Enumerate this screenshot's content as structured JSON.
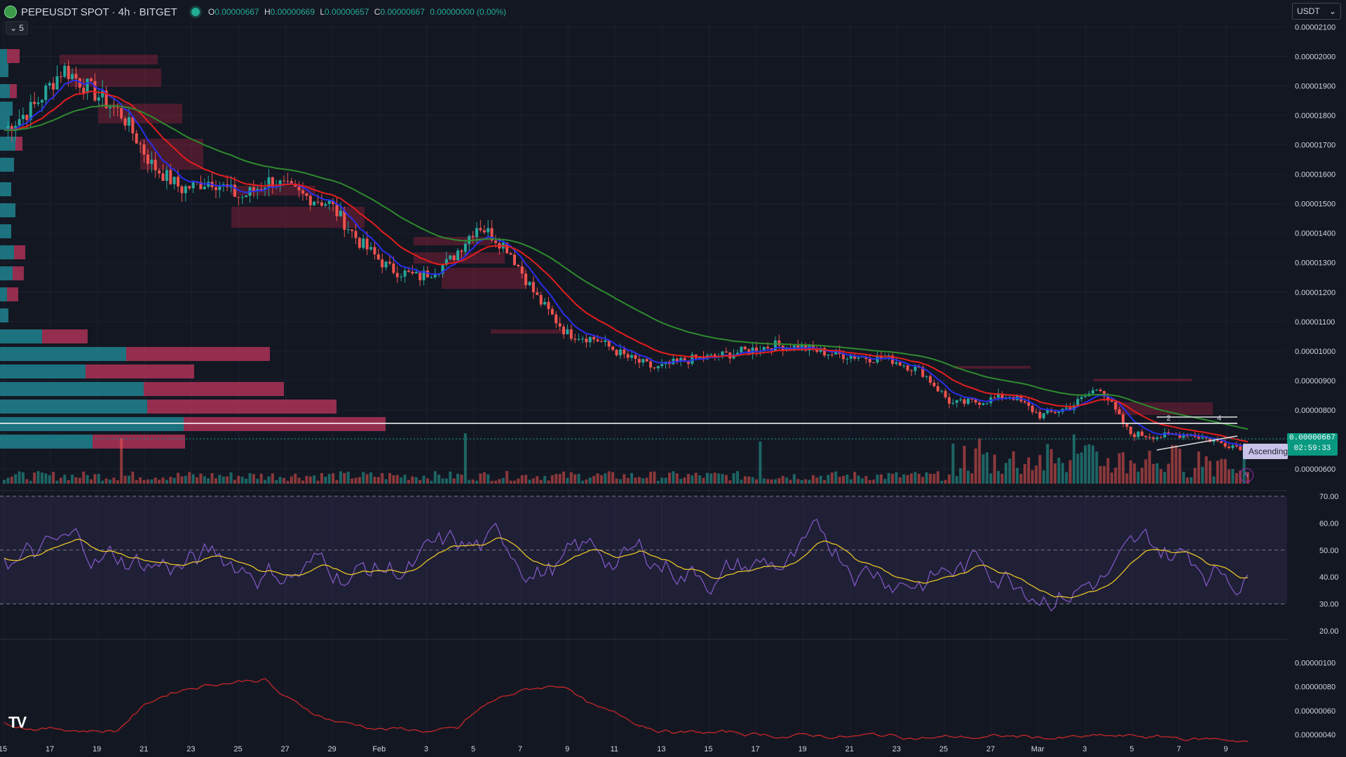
{
  "header": {
    "symbol": "PEPEUSDT SPOT · 4h · BITGET",
    "o_label": "O",
    "o": "0.00000667",
    "h_label": "H",
    "h": "0.00000669",
    "l_label": "L",
    "l": "0.00000657",
    "c_label": "C",
    "c": "0.00000667",
    "change": "0.00000000 (0.00%)"
  },
  "collapse_count": "5",
  "currency_select": "USDT",
  "current_price": "0.00000667",
  "countdown": "02:59:33",
  "pattern_label": "Ascending",
  "price_axis": [
    "0.00002100",
    "0.00002000",
    "0.00001900",
    "0.00001800",
    "0.00001700",
    "0.00001600",
    "0.00001500",
    "0.00001400",
    "0.00001300",
    "0.00001200",
    "0.00001100",
    "0.00001000",
    "0.00000900",
    "0.00000800",
    "0.00000700",
    "0.00000600"
  ],
  "rsi_axis": [
    "70.00",
    "60.00",
    "50.00",
    "40.00",
    "30.00",
    "20.00"
  ],
  "ind_axis": [
    "0.00000100",
    "0.00000080",
    "0.00000060",
    "0.00000040"
  ],
  "date_axis": [
    "15",
    "17",
    "19",
    "21",
    "23",
    "25",
    "27",
    "29",
    "Feb",
    "3",
    "5",
    "7",
    "9",
    "11",
    "13",
    "15",
    "17",
    "19",
    "21",
    "23",
    "25",
    "27",
    "Mar",
    "3",
    "5",
    "7",
    "9"
  ],
  "pattern_points": [
    "2",
    "4"
  ],
  "colors": {
    "bg": "#131722",
    "up": "#26a69a",
    "down": "#ef5350",
    "ema_fast": "#2a2eec",
    "ema_mid": "#e41e1e",
    "ema_slow": "#2e8b2e",
    "rsi": "#7e57c2",
    "rsi_ma": "#e6c229",
    "accent": "#089981"
  },
  "chart_data": {
    "type": "line",
    "x_start": "Jan 15",
    "x_end": "Mar 9",
    "ylim": [
      5.5e-06,
      2.12e-05
    ],
    "series": [
      {
        "name": "close",
        "values": [
          1.75e-05,
          1.83e-05,
          1.96e-05,
          1.88e-05,
          1.8e-05,
          1.63e-05,
          1.55e-05,
          1.58e-05,
          1.52e-05,
          1.58e-05,
          1.53e-05,
          1.5e-05,
          1.37e-05,
          1.28e-05,
          1.25e-05,
          1.3e-05,
          1.43e-05,
          1.35e-05,
          1.18e-05,
          1.06e-05,
          1.04e-05,
          9.8e-06,
          9.4e-06,
          9.7e-06,
          9.8e-06,
          1e-05,
          1.02e-05,
          1.01e-05,
          9.9e-06,
          9.8e-06,
          9.7e-06,
          9.3e-06,
          8.2e-06,
          8.3e-06,
          8.5e-06,
          7.8e-06,
          8.1e-06,
          8.8e-06,
          7.2e-06,
          7.1e-06,
          7.2e-06,
          6.9e-06,
          6.7e-06
        ]
      }
    ]
  }
}
